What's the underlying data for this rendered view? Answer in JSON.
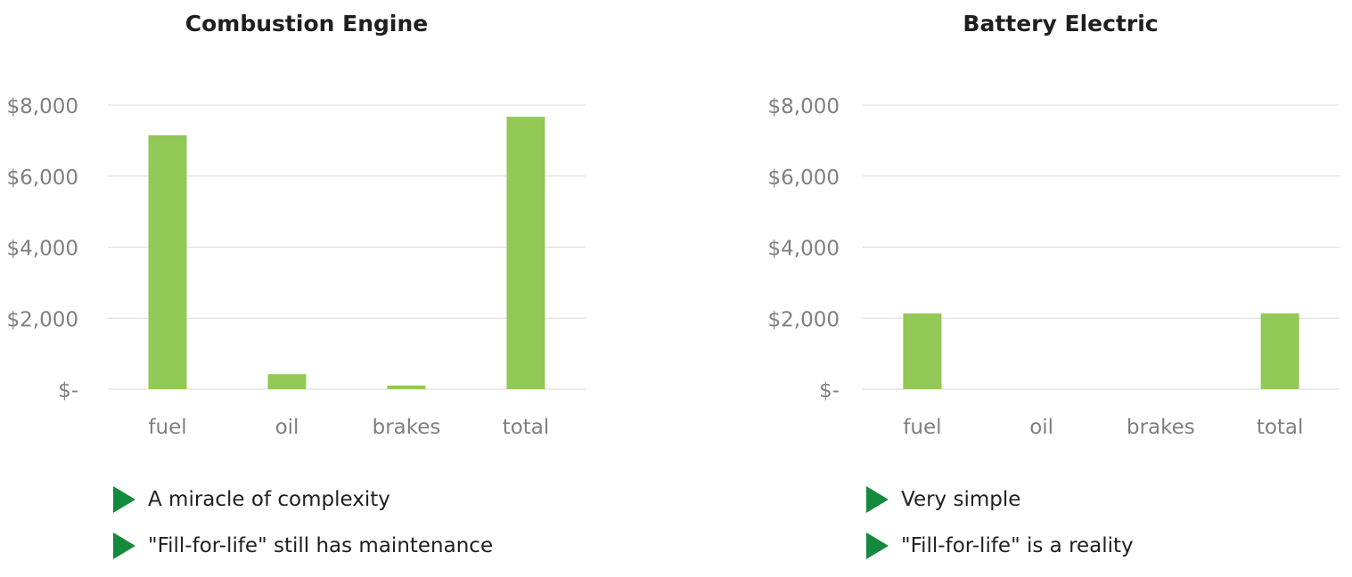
{
  "colors": {
    "bar": "#92c855",
    "grid": "#d9d9d9",
    "axis_text": "#7f7f7f",
    "bullet": "#138a3e"
  },
  "chart_data": [
    {
      "type": "bar",
      "title": "Combustion Engine",
      "categories": [
        "fuel",
        "oil",
        "brakes",
        "total"
      ],
      "values": [
        7150,
        420,
        100,
        7670
      ],
      "ylim": [
        0,
        8000
      ],
      "yticks": [
        {
          "value": 0,
          "label": "$-"
        },
        {
          "value": 2000,
          "label": "$2,000"
        },
        {
          "value": 4000,
          "label": "$4,000"
        },
        {
          "value": 6000,
          "label": "$6,000"
        },
        {
          "value": 8000,
          "label": "$8,000"
        }
      ],
      "grid": true,
      "bullets": [
        "A miracle of complexity",
        "\"Fill-for-life\" still has maintenance"
      ]
    },
    {
      "type": "bar",
      "title": "Battery Electric",
      "categories": [
        "fuel",
        "oil",
        "brakes",
        "total"
      ],
      "values": [
        2130,
        0,
        0,
        2130
      ],
      "ylim": [
        0,
        8000
      ],
      "yticks": [
        {
          "value": 0,
          "label": "$-"
        },
        {
          "value": 2000,
          "label": "$2,000"
        },
        {
          "value": 4000,
          "label": "$4,000"
        },
        {
          "value": 6000,
          "label": "$6,000"
        },
        {
          "value": 8000,
          "label": "$8,000"
        }
      ],
      "grid": true,
      "bullets": [
        "Very simple",
        "\"Fill-for-life\" is a reality"
      ]
    }
  ]
}
